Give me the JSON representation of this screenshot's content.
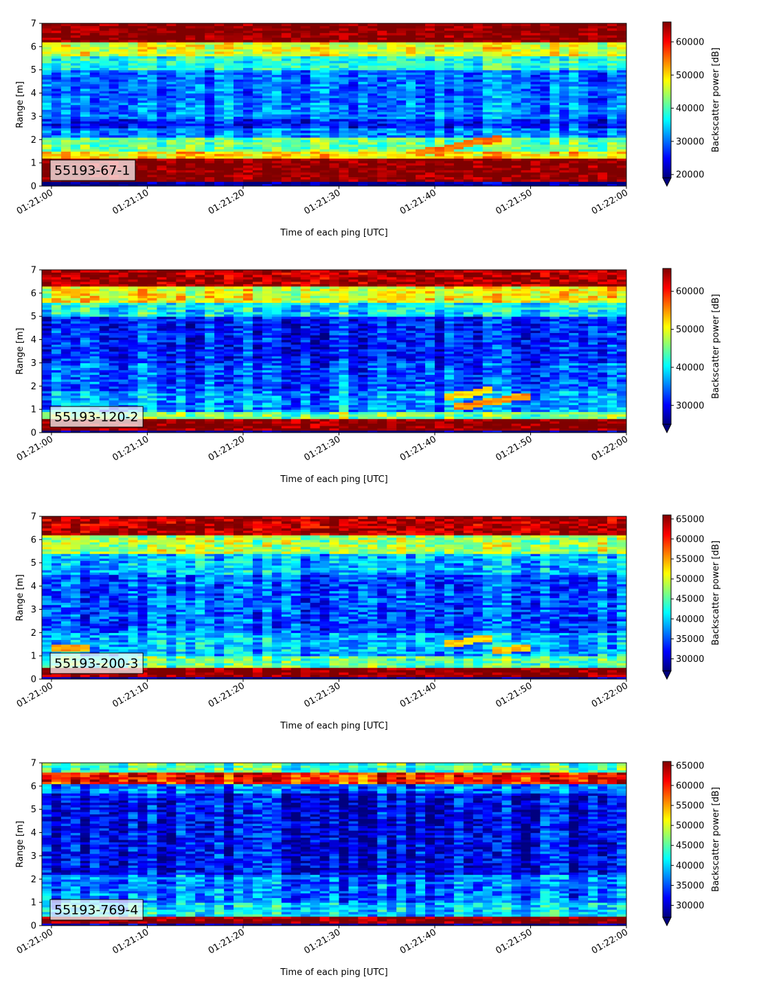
{
  "figure": {
    "colormap": "jet",
    "jet_stops": [
      "#00007f",
      "#0000ff",
      "#007fff",
      "#00ffff",
      "#7fff7f",
      "#ffff00",
      "#ff7f00",
      "#ff0000",
      "#7f0000"
    ],
    "label_box_color": "#ffffff"
  },
  "chart_data": [
    {
      "type": "heatmap",
      "annotation": "55193-67-1",
      "xlabel": "Time of each ping [UTC]",
      "ylabel": "Range [m]",
      "x_ticks": [
        "01:21:00",
        "01:21:10",
        "01:21:20",
        "01:21:30",
        "01:21:40",
        "01:21:50",
        "01:22:00"
      ],
      "xlim": [
        "01:20:59",
        "01:22:00"
      ],
      "y_ticks": [
        0,
        1,
        2,
        3,
        4,
        5,
        6,
        7
      ],
      "ylim": [
        0,
        7
      ],
      "colorbar": {
        "label": "Backscatter power [dB]",
        "ticks": [
          20000,
          30000,
          40000,
          50000,
          60000
        ],
        "range": [
          19000,
          66000
        ],
        "extend": "min"
      },
      "bands": [
        {
          "range_m": [
            0.2,
            1.2
          ],
          "level": 66000
        },
        {
          "range_m": [
            1.2,
            1.5
          ],
          "level": 50000
        },
        {
          "range_m": [
            1.5,
            2.1
          ],
          "level": 42000
        },
        {
          "range_m": [
            2.1,
            2.5
          ],
          "level": 31000
        },
        {
          "range_m": [
            2.5,
            2.9
          ],
          "level": 26000
        },
        {
          "range_m": [
            2.9,
            3.6
          ],
          "level": 31000
        },
        {
          "range_m": [
            3.6,
            5.0
          ],
          "level": 30000
        },
        {
          "range_m": [
            5.0,
            5.6
          ],
          "level": 38000
        },
        {
          "range_m": [
            5.6,
            6.2
          ],
          "level": 47000
        },
        {
          "range_m": [
            6.2,
            7.0
          ],
          "level": 66000
        }
      ],
      "features": [
        {
          "kind": "track",
          "from_time": "01:21:38",
          "to_time": "01:21:47",
          "range_m": [
            1.4,
            2.1
          ],
          "level": 55000
        }
      ]
    },
    {
      "type": "heatmap",
      "annotation": "55193-120-2",
      "xlabel": "Time of each ping [UTC]",
      "ylabel": "Range [m]",
      "x_ticks": [
        "01:21:00",
        "01:21:10",
        "01:21:20",
        "01:21:30",
        "01:21:40",
        "01:21:50",
        "01:22:00"
      ],
      "xlim": [
        "01:20:59",
        "01:22:00"
      ],
      "y_ticks": [
        0,
        1,
        2,
        3,
        4,
        5,
        6,
        7
      ],
      "ylim": [
        0,
        7
      ],
      "colorbar": {
        "label": "Backscatter power [dB]",
        "ticks": [
          30000,
          40000,
          50000,
          60000
        ],
        "range": [
          25000,
          66000
        ],
        "extend": "min"
      },
      "bands": [
        {
          "range_m": [
            0.15,
            0.6
          ],
          "level": 66000
        },
        {
          "range_m": [
            0.6,
            0.9
          ],
          "level": 45000
        },
        {
          "range_m": [
            0.9,
            1.8
          ],
          "level": 36000
        },
        {
          "range_m": [
            1.8,
            3.0
          ],
          "level": 33000
        },
        {
          "range_m": [
            3.0,
            5.0
          ],
          "level": 31000
        },
        {
          "range_m": [
            5.0,
            5.6
          ],
          "level": 40000
        },
        {
          "range_m": [
            5.6,
            6.3
          ],
          "level": 50000
        },
        {
          "range_m": [
            6.3,
            7.0
          ],
          "level": 64000
        }
      ],
      "features": [
        {
          "kind": "track",
          "from_time": "01:21:41",
          "to_time": "01:21:46",
          "range_m": [
            1.5,
            1.9
          ],
          "level": 52000
        },
        {
          "kind": "track",
          "from_time": "01:21:42",
          "to_time": "01:21:50",
          "range_m": [
            1.1,
            1.6
          ],
          "level": 55000
        }
      ]
    },
    {
      "type": "heatmap",
      "annotation": "55193-200-3",
      "xlabel": "Time of each ping [UTC]",
      "ylabel": "Range [m]",
      "x_ticks": [
        "01:21:00",
        "01:21:10",
        "01:21:20",
        "01:21:30",
        "01:21:40",
        "01:21:50",
        "01:22:00"
      ],
      "xlim": [
        "01:20:59",
        "01:22:00"
      ],
      "y_ticks": [
        0,
        1,
        2,
        3,
        4,
        5,
        6,
        7
      ],
      "ylim": [
        0,
        7
      ],
      "colorbar": {
        "label": "Backscatter power [dB]",
        "ticks": [
          30000,
          35000,
          40000,
          45000,
          50000,
          55000,
          60000,
          65000
        ],
        "range": [
          27000,
          66000
        ],
        "extend": "min"
      },
      "bands": [
        {
          "range_m": [
            0.15,
            0.5
          ],
          "level": 66000
        },
        {
          "range_m": [
            0.5,
            1.0
          ],
          "level": 45000
        },
        {
          "range_m": [
            1.0,
            2.0
          ],
          "level": 39000
        },
        {
          "range_m": [
            2.0,
            4.5
          ],
          "level": 35000
        },
        {
          "range_m": [
            4.5,
            5.4
          ],
          "level": 39000
        },
        {
          "range_m": [
            5.4,
            6.2
          ],
          "level": 48000
        },
        {
          "range_m": [
            6.2,
            7.0
          ],
          "level": 64000
        }
      ],
      "features": [
        {
          "kind": "track",
          "from_time": "01:21:41",
          "to_time": "01:21:46",
          "range_m": [
            1.5,
            1.8
          ],
          "level": 53000
        },
        {
          "kind": "track",
          "from_time": "01:21:46",
          "to_time": "01:21:50",
          "range_m": [
            1.2,
            1.4
          ],
          "level": 53000
        },
        {
          "kind": "track",
          "from_time": "01:21:00",
          "to_time": "01:21:04",
          "range_m": [
            1.3,
            1.4
          ],
          "level": 55000
        }
      ]
    },
    {
      "type": "heatmap",
      "annotation": "55193-769-4",
      "xlabel": "Time of each ping [UTC]",
      "ylabel": "Range [m]",
      "x_ticks": [
        "01:21:00",
        "01:21:10",
        "01:21:20",
        "01:21:30",
        "01:21:40",
        "01:21:50",
        "01:22:00"
      ],
      "xlim": [
        "01:20:59",
        "01:22:00"
      ],
      "y_ticks": [
        0,
        1,
        2,
        3,
        4,
        5,
        6,
        7
      ],
      "ylim": [
        0,
        7
      ],
      "colorbar": {
        "label": "Backscatter power [dB]",
        "ticks": [
          30000,
          35000,
          40000,
          45000,
          50000,
          55000,
          60000,
          65000
        ],
        "range": [
          27000,
          66000
        ],
        "extend": "min"
      },
      "bands": [
        {
          "range_m": [
            0.15,
            0.4
          ],
          "level": 66000
        },
        {
          "range_m": [
            0.4,
            1.0
          ],
          "level": 40000
        },
        {
          "range_m": [
            1.0,
            2.2
          ],
          "level": 36000
        },
        {
          "range_m": [
            2.2,
            5.7
          ],
          "level": 31000
        },
        {
          "range_m": [
            5.7,
            6.1
          ],
          "level": 36000
        },
        {
          "range_m": [
            6.1,
            6.6
          ],
          "level": 60000
        },
        {
          "range_m": [
            6.6,
            7.0
          ],
          "level": 44000
        }
      ],
      "features": []
    }
  ]
}
